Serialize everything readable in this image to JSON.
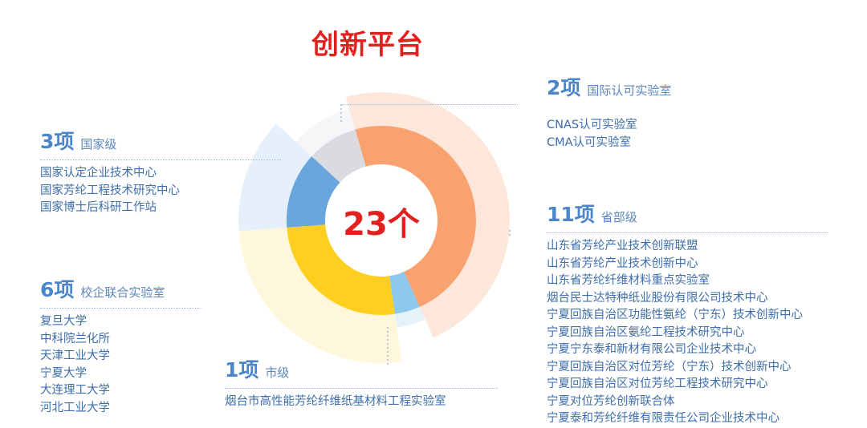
{
  "title": "创新平台",
  "chart_data": {
    "type": "pie",
    "center_value": "23个",
    "total": 23,
    "slices": [
      {
        "label": "省部级",
        "count_label": "11项",
        "value": 11,
        "color": "#f9a16f",
        "halo": "#fbd3bc"
      },
      {
        "label": "市级",
        "count_label": "1项",
        "value": 1,
        "color": "#8cc9ec",
        "halo": "#cfe7f6"
      },
      {
        "label": "校企联合实验室",
        "count_label": "6项",
        "value": 6,
        "color": "#ffcf1f",
        "halo": "#fff0c0"
      },
      {
        "label": "国家级",
        "count_label": "3项",
        "value": 3,
        "color": "#6aa6de",
        "halo": "#cfe3f7"
      },
      {
        "label": "国际认可实验室",
        "count_label": "2项",
        "value": 2,
        "color": "#d9dbe0",
        "halo": "#eeeff2"
      }
    ]
  },
  "groups": {
    "intl": {
      "count": "2项",
      "label": "国际认可实验室",
      "items": [
        "CNAS认可实验室",
        "CMA认可实验室"
      ]
    },
    "national": {
      "count": "3项",
      "label": "国家级",
      "items": [
        "国家认定企业技术中心",
        "国家芳纶工程技术研究中心",
        "国家博士后科研工作站"
      ]
    },
    "provincial": {
      "count": "11项",
      "label": "省部级",
      "items": [
        "山东省芳纶产业技术创新联盟",
        "山东省芳纶产业技术创新中心",
        "山东省芳纶纤维材料重点实验室",
        "烟台民士达特种纸业股份有限公司技术中心",
        "宁夏回族自治区功能性氨纶（宁东）技术创新中心",
        "宁夏回族自治区氨纶工程技术研究中心",
        "宁夏宁东泰和新材有限公司企业技术中心",
        "宁夏回族自治区对位芳纶（宁东）技术创新中心",
        "宁夏回族自治区对位芳纶工程技术研究中心",
        "宁夏对位芳纶创新联合体",
        "宁夏泰和芳纶纤维有限责任公司企业技术中心"
      ]
    },
    "school": {
      "count": "6项",
      "label": "校企联合实验室",
      "items": [
        "复旦大学",
        "中科院兰化所",
        "天津工业大学",
        "宁夏大学",
        "大连理工大学",
        "河北工业大学"
      ]
    },
    "city": {
      "count": "1项",
      "label": "市级",
      "items": [
        "烟台市高性能芳纶纤维纸基材料工程实验室"
      ]
    }
  }
}
